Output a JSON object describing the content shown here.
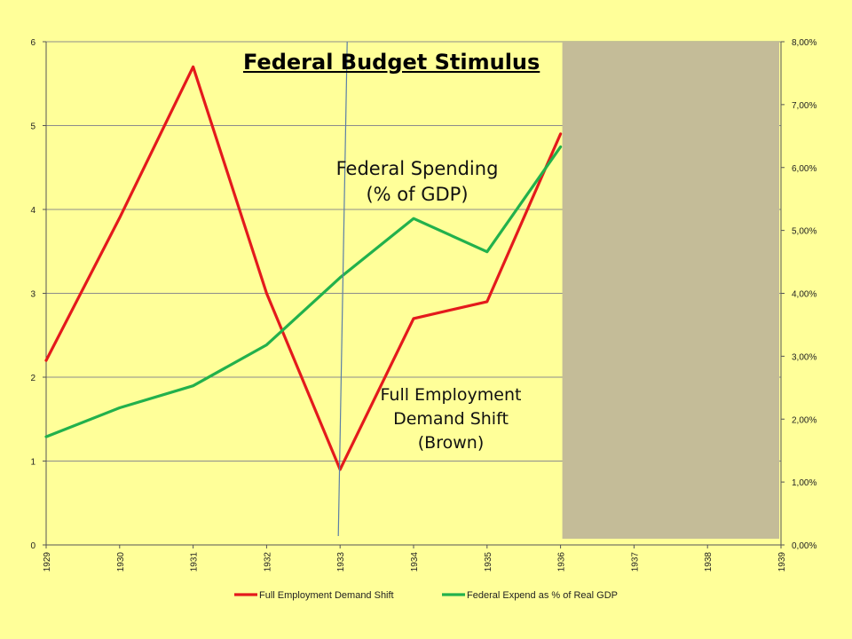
{
  "title": "Federal Budget Stimulus",
  "annotations": {
    "federal_spending": [
      "Federal Spending",
      "(% of GDP)"
    ],
    "full_employment": [
      "Full Employment",
      "Demand Shift",
      "(Brown)"
    ]
  },
  "colors": {
    "background": "#ffff99",
    "red": "#e41a1c",
    "green": "#22b14c",
    "mask": "#c4bc98",
    "grid": "#8c8c8c",
    "blue_line": "#5b7fa6"
  },
  "chart_data": {
    "type": "line",
    "categories": [
      "1929",
      "1930",
      "1931",
      "1932",
      "1933",
      "1934",
      "1935",
      "1936",
      "1937",
      "1938",
      "1939"
    ],
    "series": [
      {
        "name": "Full Employment Demand Shift",
        "axis": "left",
        "color": "#e41a1c",
        "values": [
          2.2,
          3.9,
          5.7,
          3.0,
          0.9,
          2.7,
          2.9,
          4.9,
          null,
          null,
          null
        ]
      },
      {
        "name": "Federal Expend as % of Real GDP",
        "axis": "right",
        "color": "#22b14c",
        "values": [
          0.0172,
          0.0218,
          0.0253,
          0.0318,
          0.0425,
          0.0519,
          0.0466,
          0.0633,
          null,
          null,
          null
        ]
      }
    ],
    "y_left": {
      "ticks": [
        "0",
        "1",
        "2",
        "3",
        "4",
        "5",
        "6"
      ],
      "min": 0,
      "max": 6
    },
    "y_right": {
      "ticks": [
        "0,00%",
        "1,00%",
        "2,00%",
        "3,00%",
        "4,00%",
        "5,00%",
        "6,00%",
        "7,00%",
        "8,00%"
      ],
      "min": 0,
      "max": 0.08
    },
    "grid": true,
    "legend": "bottom",
    "masked_region_from": "1936",
    "vertical_marker_near": "1933"
  }
}
